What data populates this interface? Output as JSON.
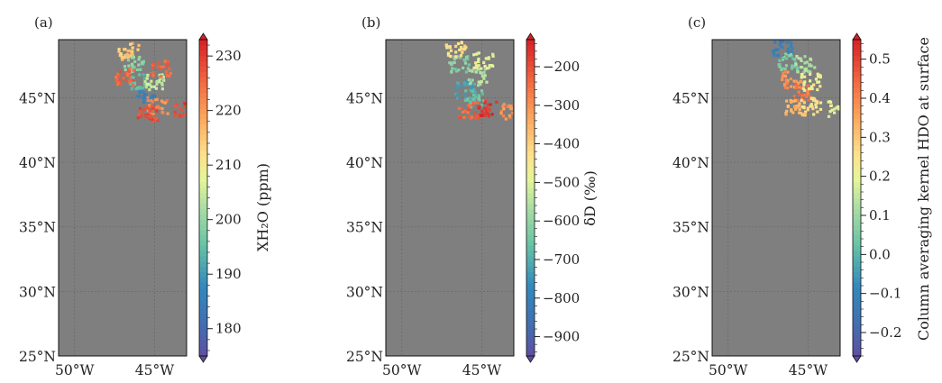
{
  "chart_data": [
    {
      "type": "scatter",
      "panel_label": "(a)",
      "colorbar_label": "XH₂O (ppm)",
      "colorbar_range": [
        175,
        233
      ],
      "colorbar_ticks": [
        230,
        220,
        210,
        200,
        190,
        180
      ],
      "colorbar_tick_labels": [
        "230",
        "220",
        "210",
        "200",
        "190",
        "180"
      ],
      "colormap": "spectral",
      "xlim": [
        -51,
        -43
      ],
      "ylim": [
        25,
        49.5
      ],
      "xticks": [
        -50,
        -45
      ],
      "xtick_labels": [
        "50°W",
        "45°W"
      ],
      "yticks": [
        25,
        30,
        35,
        40,
        45
      ],
      "ytick_labels": [
        "25°N",
        "30°N",
        "35°N",
        "40°N",
        "45°N"
      ],
      "grid": true,
      "background": "#7f7f7f",
      "clusters": [
        {
          "lon": -45.6,
          "lat": 45.2,
          "value": 186
        },
        {
          "lon": -45.9,
          "lat": 46.3,
          "value": 195
        },
        {
          "lon": -46.3,
          "lat": 47.6,
          "value": 200
        },
        {
          "lon": -45.0,
          "lat": 46.2,
          "value": 205
        },
        {
          "lon": -46.6,
          "lat": 48.6,
          "value": 215
        },
        {
          "lon": -44.8,
          "lat": 44.4,
          "value": 222
        },
        {
          "lon": -46.9,
          "lat": 46.6,
          "value": 226
        },
        {
          "lon": -44.6,
          "lat": 47.2,
          "value": 226
        },
        {
          "lon": -45.4,
          "lat": 43.8,
          "value": 228
        },
        {
          "lon": -43.1,
          "lat": 44.0,
          "value": 229
        }
      ]
    },
    {
      "type": "scatter",
      "panel_label": "(b)",
      "colorbar_label": "δD (‰)",
      "colorbar_range": [
        -950,
        -130
      ],
      "colorbar_ticks": [
        -200,
        -300,
        -400,
        -500,
        -600,
        -700,
        -800,
        -900
      ],
      "colorbar_tick_labels": [
        "−200",
        "−300",
        "−400",
        "−500",
        "−600",
        "−700",
        "−800",
        "−900"
      ],
      "colormap": "spectral",
      "xlim": [
        -51,
        -43
      ],
      "ylim": [
        25,
        49.5
      ],
      "xticks": [
        -50,
        -45
      ],
      "xtick_labels": [
        "50°W",
        "45°W"
      ],
      "yticks": [
        25,
        30,
        35,
        40,
        45
      ],
      "ytick_labels": [
        "25°N",
        "30°N",
        "35°N",
        "40°N",
        "45°N"
      ],
      "grid": true,
      "background": "#7f7f7f",
      "clusters": [
        {
          "lon": -46.0,
          "lat": 45.6,
          "value": -720
        },
        {
          "lon": -46.4,
          "lat": 47.6,
          "value": -620
        },
        {
          "lon": -45.2,
          "lat": 46.6,
          "value": -560
        },
        {
          "lon": -46.6,
          "lat": 48.7,
          "value": -430
        },
        {
          "lon": -44.9,
          "lat": 47.9,
          "value": -480
        },
        {
          "lon": -45.4,
          "lat": 44.9,
          "value": -650
        },
        {
          "lon": -44.7,
          "lat": 44.1,
          "value": -160
        },
        {
          "lon": -45.8,
          "lat": 44.0,
          "value": -230
        },
        {
          "lon": -43.2,
          "lat": 44.0,
          "value": -300
        }
      ]
    },
    {
      "type": "scatter",
      "panel_label": "(c)",
      "colorbar_label": "Column averaging kernel HDO at surface",
      "colorbar_range": [
        -0.26,
        0.55
      ],
      "colorbar_ticks": [
        0.5,
        0.4,
        0.3,
        0.2,
        0.1,
        0.0,
        -0.1,
        -0.2
      ],
      "colorbar_tick_labels": [
        "0.5",
        "0.4",
        "0.3",
        "0.2",
        "0.1",
        "0.0",
        "−0.1",
        "−0.2"
      ],
      "colormap": "spectral",
      "xlim": [
        -51,
        -43
      ],
      "ylim": [
        25,
        49.5
      ],
      "xticks": [
        -50,
        -45
      ],
      "xtick_labels": [
        "50°W",
        "45°W"
      ],
      "yticks": [
        25,
        30,
        35,
        40,
        45
      ],
      "ytick_labels": [
        "25°N",
        "30°N",
        "35°N",
        "40°N",
        "45°N"
      ],
      "grid": true,
      "background": "#7f7f7f",
      "clusters": [
        {
          "lon": -46.6,
          "lat": 48.8,
          "value": -0.12
        },
        {
          "lon": -46.2,
          "lat": 47.8,
          "value": 0.05
        },
        {
          "lon": -45.2,
          "lat": 47.6,
          "value": 0.12
        },
        {
          "lon": -46.0,
          "lat": 46.4,
          "value": 0.38
        },
        {
          "lon": -45.4,
          "lat": 45.4,
          "value": 0.42
        },
        {
          "lon": -44.8,
          "lat": 46.2,
          "value": 0.22
        },
        {
          "lon": -44.8,
          "lat": 44.3,
          "value": 0.25
        },
        {
          "lon": -45.8,
          "lat": 44.2,
          "value": 0.32
        },
        {
          "lon": -43.1,
          "lat": 44.1,
          "value": 0.2
        }
      ]
    }
  ]
}
